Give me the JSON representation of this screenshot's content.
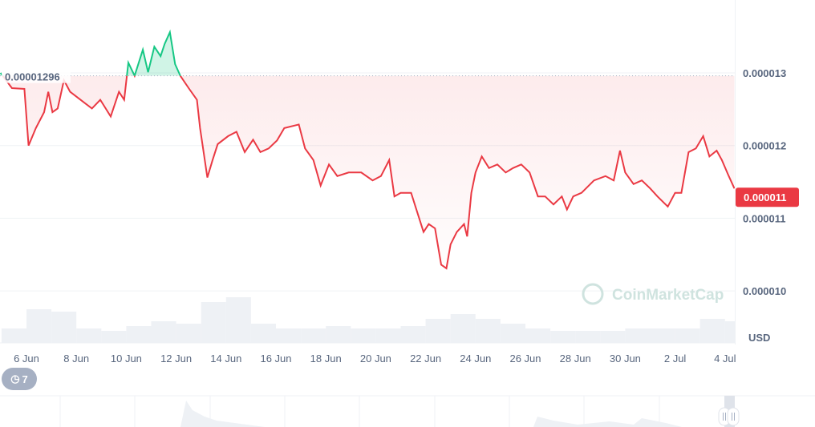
{
  "chart_data": {
    "type": "line",
    "title": "",
    "currency_label": "USD",
    "watermark": "CoinMarketCap",
    "reference_price_label": "0.00001296",
    "reference_price": 1.296e-05,
    "current_price_label": "0.000011",
    "ylim": [
      9.95e-06,
      1.38e-05
    ],
    "y_ticks": [
      {
        "value": 1.3e-05,
        "label": "0.000013"
      },
      {
        "value": 1.2e-05,
        "label": "0.000012"
      },
      {
        "value": 1.1e-05,
        "label": "0.000011"
      },
      {
        "value": 1e-05,
        "label": "0.000010"
      }
    ],
    "x_ticks": [
      {
        "date": "Jun 6 00:00",
        "label": "6 Jun"
      },
      {
        "date": "Jun 8 00:00",
        "label": "8 Jun"
      },
      {
        "date": "Jun 10 00:00",
        "label": "10 Jun"
      },
      {
        "date": "Jun 12 00:00",
        "label": "12 Jun"
      },
      {
        "date": "Jun 14 00:00",
        "label": "14 Jun"
      },
      {
        "date": "Jun 16 00:00",
        "label": "16 Jun"
      },
      {
        "date": "Jun 18 00:00",
        "label": "18 Jun"
      },
      {
        "date": "Jun 20 00:00",
        "label": "20 Jun"
      },
      {
        "date": "Jun 22 00:00",
        "label": "22 Jun"
      },
      {
        "date": "Jun 24 00:00",
        "label": "24 Jun"
      },
      {
        "date": "Jun 26 00:00",
        "label": "26 Jun"
      },
      {
        "date": "Jun 28 00:00",
        "label": "28 Jun"
      },
      {
        "date": "Jun 30 00:00",
        "label": "30 Jun"
      },
      {
        "date": "Jul 2 00:00",
        "label": "2 Jul"
      },
      {
        "date": "Jul 4 00:00",
        "label": "4 Jul"
      }
    ],
    "xlim": [
      "Jun 4 23:00",
      "Jul 4 09:00"
    ],
    "grid": true,
    "colors": {
      "up": "#16c784",
      "down": "#ea3943",
      "grid": "#eff2f5",
      "axis_text": "#58667e",
      "volume": "#eef1f5"
    },
    "series": [
      {
        "points": [
          [
            "Jun 4 23:00",
            1.3e-05
          ],
          [
            "Jun 5 10:00",
            1.279e-05
          ],
          [
            "Jun 5 22:00",
            1.278e-05
          ],
          [
            "Jun 6 02:00",
            1.2e-05
          ],
          [
            "Jun 6 09:00",
            1.224e-05
          ],
          [
            "Jun 6 17:00",
            1.246e-05
          ],
          [
            "Jun 6 21:00",
            1.274e-05
          ],
          [
            "Jun 7 01:00",
            1.246e-05
          ],
          [
            "Jun 7 06:00",
            1.251e-05
          ],
          [
            "Jun 7 12:00",
            1.29e-05
          ],
          [
            "Jun 7 18:00",
            1.274e-05
          ],
          [
            "Jun 8 04:00",
            1.263e-05
          ],
          [
            "Jun 8 15:00",
            1.251e-05
          ],
          [
            "Jun 8 23:00",
            1.263e-05
          ],
          [
            "Jun 9 09:00",
            1.24e-05
          ],
          [
            "Jun 9 17:00",
            1.274e-05
          ],
          [
            "Jun 9 22:00",
            1.263e-05
          ],
          [
            "Jun 10 02:00",
            1.314e-05
          ],
          [
            "Jun 10 08:00",
            1.296e-05
          ],
          [
            "Jun 10 16:00",
            1.332e-05
          ],
          [
            "Jun 10 21:00",
            1.301e-05
          ],
          [
            "Jun 11 03:00",
            1.336e-05
          ],
          [
            "Jun 11 09:00",
            1.323e-05
          ],
          [
            "Jun 11 13:00",
            1.34e-05
          ],
          [
            "Jun 11 18:00",
            1.356e-05
          ],
          [
            "Jun 11 23:00",
            1.312e-05
          ],
          [
            "Jun 12 04:00",
            1.296e-05
          ],
          [
            "Jun 12 12:00",
            1.279e-05
          ],
          [
            "Jun 12 20:00",
            1.263e-05
          ],
          [
            "Jun 12 23:00",
            1.224e-05
          ],
          [
            "Jun 13 06:00",
            1.156e-05
          ],
          [
            "Jun 13 11:00",
            1.18e-05
          ],
          [
            "Jun 13 16:00",
            1.202e-05
          ],
          [
            "Jun 14 02:00",
            1.213e-05
          ],
          [
            "Jun 14 10:00",
            1.219e-05
          ],
          [
            "Jun 14 18:00",
            1.191e-05
          ],
          [
            "Jun 15 02:00",
            1.208e-05
          ],
          [
            "Jun 15 09:00",
            1.191e-05
          ],
          [
            "Jun 15 17:00",
            1.196e-05
          ],
          [
            "Jun 16 01:00",
            1.207e-05
          ],
          [
            "Jun 16 08:00",
            1.224e-05
          ],
          [
            "Jun 16 22:00",
            1.229e-05
          ],
          [
            "Jun 17 04:00",
            1.196e-05
          ],
          [
            "Jun 17 12:00",
            1.18e-05
          ],
          [
            "Jun 17 19:00",
            1.145e-05
          ],
          [
            "Jun 18 03:00",
            1.174e-05
          ],
          [
            "Jun 18 11:00",
            1.158e-05
          ],
          [
            "Jun 18 22:00",
            1.163e-05
          ],
          [
            "Jun 19 10:00",
            1.163e-05
          ],
          [
            "Jun 19 21:00",
            1.152e-05
          ],
          [
            "Jun 20 05:00",
            1.158e-05
          ],
          [
            "Jun 20 13:00",
            1.18e-05
          ],
          [
            "Jun 20 18:00",
            1.13e-05
          ],
          [
            "Jun 21 00:00",
            1.135e-05
          ],
          [
            "Jun 21 10:00",
            1.135e-05
          ],
          [
            "Jun 21 16:00",
            1.108e-05
          ],
          [
            "Jun 21 22:00",
            1.081e-05
          ],
          [
            "Jun 22 03:00",
            1.092e-05
          ],
          [
            "Jun 22 09:00",
            1.086e-05
          ],
          [
            "Jun 22 15:00",
            1.036e-05
          ],
          [
            "Jun 22 20:00",
            1.031e-05
          ],
          [
            "Jun 23 00:00",
            1.064e-05
          ],
          [
            "Jun 23 06:00",
            1.081e-05
          ],
          [
            "Jun 23 13:00",
            1.092e-05
          ],
          [
            "Jun 23 16:00",
            1.075e-05
          ],
          [
            "Jun 23 20:00",
            1.135e-05
          ],
          [
            "Jun 24 00:00",
            1.163e-05
          ],
          [
            "Jun 24 06:00",
            1.185e-05
          ],
          [
            "Jun 24 13:00",
            1.169e-05
          ],
          [
            "Jun 24 21:00",
            1.174e-05
          ],
          [
            "Jun 25 05:00",
            1.163e-05
          ],
          [
            "Jun 25 12:00",
            1.169e-05
          ],
          [
            "Jun 25 20:00",
            1.174e-05
          ],
          [
            "Jun 26 04:00",
            1.163e-05
          ],
          [
            "Jun 26 12:00",
            1.13e-05
          ],
          [
            "Jun 26 19:00",
            1.13e-05
          ],
          [
            "Jun 27 03:00",
            1.119e-05
          ],
          [
            "Jun 27 11:00",
            1.13e-05
          ],
          [
            "Jun 27 16:00",
            1.112e-05
          ],
          [
            "Jun 27 22:00",
            1.13e-05
          ],
          [
            "Jun 28 06:00",
            1.135e-05
          ],
          [
            "Jun 28 18:00",
            1.152e-05
          ],
          [
            "Jun 29 05:00",
            1.158e-05
          ],
          [
            "Jun 29 13:00",
            1.152e-05
          ],
          [
            "Jun 29 19:00",
            1.193e-05
          ],
          [
            "Jun 30 00:00",
            1.163e-05
          ],
          [
            "Jun 30 08:00",
            1.147e-05
          ],
          [
            "Jun 30 16:00",
            1.152e-05
          ],
          [
            "Jul 1 00:00",
            1.141e-05
          ],
          [
            "Jul 1 07:00",
            1.13e-05
          ],
          [
            "Jul 1 17:00",
            1.116e-05
          ],
          [
            "Jul 2 00:00",
            1.135e-05
          ],
          [
            "Jul 2 06:00",
            1.135e-05
          ],
          [
            "Jul 2 13:00",
            1.191e-05
          ],
          [
            "Jul 2 20:00",
            1.196e-05
          ],
          [
            "Jul 3 03:00",
            1.213e-05
          ],
          [
            "Jul 3 09:00",
            1.185e-05
          ],
          [
            "Jul 3 16:00",
            1.193e-05
          ],
          [
            "Jul 3 21:00",
            1.18e-05
          ],
          [
            "Jul 4 03:00",
            1.16e-05
          ],
          [
            "Jul 4 09:00",
            1.141e-05
          ]
        ]
      }
    ],
    "volume_relative": [
      0.3,
      0.7,
      0.65,
      0.3,
      0.25,
      0.35,
      0.45,
      0.4,
      0.85,
      0.95,
      0.4,
      0.3,
      0.3,
      0.35,
      0.3,
      0.3,
      0.35,
      0.5,
      0.6,
      0.5,
      0.4,
      0.3,
      0.25,
      0.25,
      0.25,
      0.3,
      0.3,
      0.3,
      0.5,
      0.45
    ],
    "volume_start": "Jun 5 00:00"
  },
  "controls": {
    "history_badge_count": "7",
    "history_icon": "history-clock-icon",
    "navigator_handle_icon": "pause-grip-icon"
  }
}
